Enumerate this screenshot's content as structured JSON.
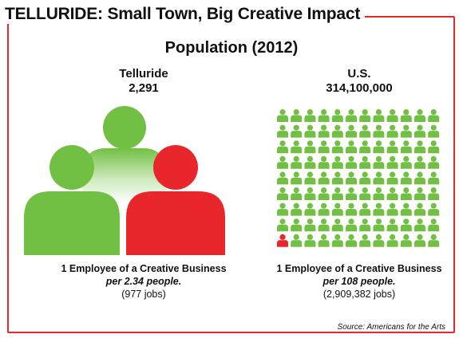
{
  "title": "TELLURIDE: Small Town, Big Creative Impact",
  "subtitle": "Population (2012)",
  "colors": {
    "green": "#72c043",
    "red": "#e8262b",
    "frame": "#e8262b"
  },
  "chart_data": [
    {
      "type": "pictogram",
      "name": "Telluride",
      "population": "2,291",
      "icons_total": 3,
      "icons_highlighted": 1,
      "caption": {
        "line1_bold": "1 Employee of a Creative Business",
        "line2_bold_italic": "per 2.34 people.",
        "line3": "(977 jobs)"
      }
    },
    {
      "type": "pictogram",
      "name": "U.S.",
      "population": "314,100,000",
      "icons_total": 108,
      "icons_highlighted": 1,
      "caption": {
        "line1_bold": "1 Employee of a Creative Business",
        "line2_bold_italic": "per 108 people.",
        "line3": "(2,909,382 jobs)"
      }
    }
  ],
  "source": "Source: Americans for the Arts"
}
